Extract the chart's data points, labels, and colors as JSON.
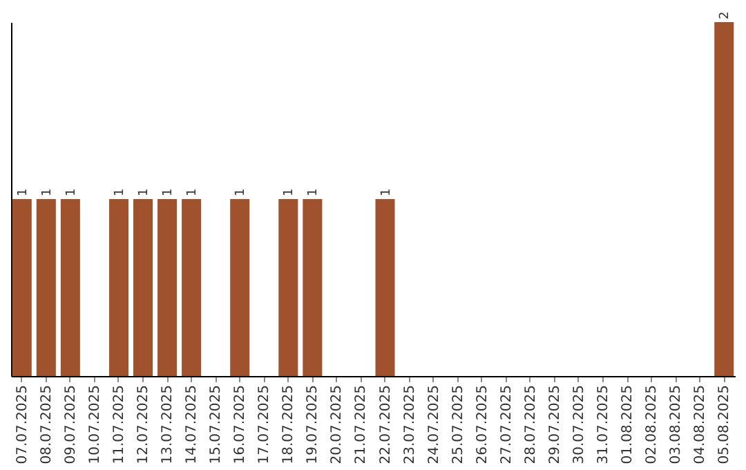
{
  "chart_data": {
    "type": "bar",
    "categories": [
      "07.07.2025",
      "08.07.2025",
      "09.07.2025",
      "10.07.2025",
      "11.07.2025",
      "12.07.2025",
      "13.07.2025",
      "14.07.2025",
      "15.07.2025",
      "16.07.2025",
      "17.07.2025",
      "18.07.2025",
      "19.07.2025",
      "20.07.2025",
      "21.07.2025",
      "22.07.2025",
      "23.07.2025",
      "24.07.2025",
      "25.07.2025",
      "26.07.2025",
      "27.07.2025",
      "28.07.2025",
      "29.07.2025",
      "30.07.2025",
      "31.07.2025",
      "01.08.2025",
      "02.08.2025",
      "03.08.2025",
      "04.08.2025",
      "05.08.2025"
    ],
    "values": [
      1,
      1,
      1,
      0,
      1,
      1,
      1,
      1,
      0,
      1,
      0,
      1,
      1,
      0,
      0,
      1,
      0,
      0,
      0,
      0,
      0,
      0,
      0,
      0,
      0,
      0,
      0,
      0,
      0,
      2
    ],
    "value_labels": [
      "1",
      "1",
      "1",
      null,
      "1",
      "1",
      "1",
      "1",
      null,
      "1",
      null,
      "1",
      "1",
      null,
      null,
      "1",
      null,
      null,
      null,
      null,
      null,
      null,
      null,
      null,
      null,
      null,
      null,
      null,
      null,
      "2"
    ],
    "color": "#a0522d",
    "grid": false,
    "tick_labels": "x"
  }
}
